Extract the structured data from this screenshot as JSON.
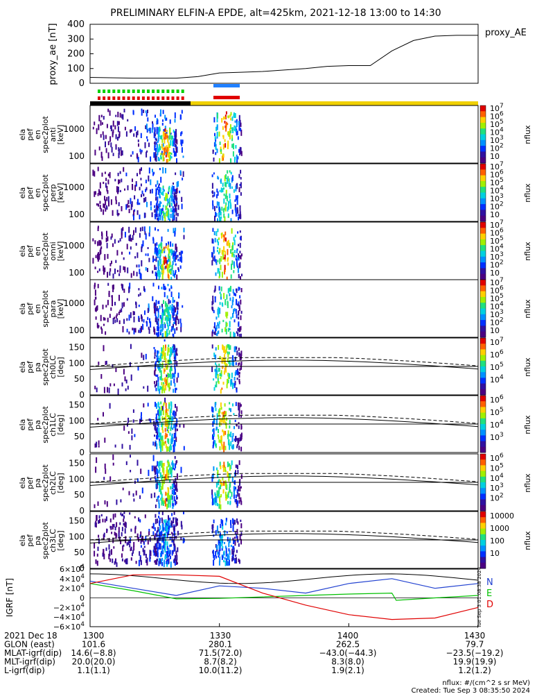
{
  "title": "PRELIMINARY ELFIN-A EPDE, alt=425km, 2021-12-18 13:00 to 14:30",
  "top_panel": {
    "ylabel": "proxy_ae [nT]",
    "legend": "proxy_AE",
    "yticks": [
      "400",
      "300",
      "200",
      "100",
      "0"
    ]
  },
  "energy_panels": [
    {
      "ylabel": [
        "ela",
        "pef",
        "en",
        "spec2plot",
        "anti",
        "[keV]"
      ]
    },
    {
      "ylabel": [
        "ela",
        "pef",
        "en",
        "spec2plot",
        "perp",
        "[keV]"
      ]
    },
    {
      "ylabel": [
        "ela",
        "pef",
        "en",
        "spec2plot",
        "omni",
        "[keV]"
      ]
    },
    {
      "ylabel": [
        "ela",
        "pef",
        "en",
        "spec2plot",
        "para",
        "[keV]"
      ]
    }
  ],
  "energy_yticks": [
    "1000",
    "100"
  ],
  "energy_colorbar": {
    "label": "nflux",
    "ticks": [
      {
        "base": "10",
        "exp": "7"
      },
      {
        "base": "10",
        "exp": "6"
      },
      {
        "base": "10",
        "exp": "5"
      },
      {
        "base": "10",
        "exp": "4"
      },
      {
        "base": "10",
        "exp": "3"
      },
      {
        "base": "10",
        "exp": "2"
      },
      {
        "base": "10",
        "exp": ""
      }
    ]
  },
  "pa_panels": [
    {
      "ylabel": [
        "ela",
        "pef",
        "pa",
        "spec2plot",
        "ch0LC",
        "[deg]"
      ],
      "cbar": [
        {
          "base": "10",
          "exp": "7"
        },
        {
          "base": "10",
          "exp": "6"
        },
        {
          "base": "10",
          "exp": "5"
        },
        {
          "base": "10",
          "exp": "4"
        }
      ]
    },
    {
      "ylabel": [
        "ela",
        "pef",
        "pa",
        "spec2plot",
        "ch1LC",
        "[deg]"
      ],
      "cbar": [
        {
          "base": "10",
          "exp": "6"
        },
        {
          "base": "10",
          "exp": "5"
        },
        {
          "base": "10",
          "exp": "4"
        },
        {
          "base": "10",
          "exp": "3"
        }
      ]
    },
    {
      "ylabel": [
        "ela",
        "pef",
        "pa",
        "spec2plot",
        "ch2LC",
        "[deg]"
      ],
      "cbar": [
        {
          "base": "10",
          "exp": "6"
        },
        {
          "base": "10",
          "exp": "5"
        },
        {
          "base": "10",
          "exp": "4"
        },
        {
          "base": "10",
          "exp": "3"
        },
        {
          "base": "10",
          "exp": "2"
        }
      ]
    },
    {
      "ylabel": [
        "ela",
        "pef",
        "pa",
        "spec2plot",
        "ch3LC",
        "[deg]"
      ],
      "cbar": [
        {
          "base": "10000",
          "exp": ""
        },
        {
          "base": "1000",
          "exp": ""
        },
        {
          "base": "100",
          "exp": ""
        },
        {
          "base": "10",
          "exp": ""
        }
      ]
    }
  ],
  "pa_yticks": [
    "150",
    "100",
    "50",
    "0"
  ],
  "pa_cbar_label": "nflux",
  "igrf_panel": {
    "ylabel": "IGRF [nT]",
    "yticks": [
      {
        "base": "6×10",
        "exp": "4"
      },
      {
        "base": "4×10",
        "exp": "4"
      },
      {
        "base": "2×10",
        "exp": "4"
      },
      {
        "base": "0",
        "exp": ""
      },
      {
        "base": "−2×10",
        "exp": "4"
      },
      {
        "base": "−4×10",
        "exp": "4"
      },
      {
        "base": "−6×10",
        "exp": "4"
      }
    ],
    "legend": [
      "N",
      "E",
      "D"
    ],
    "side_stamp": "Tue Sep  3 01:08:38 2024"
  },
  "footer": {
    "rows": [
      {
        "label": "2021 Dec 18",
        "vals": [
          "1300",
          "1330",
          "1400",
          "1430"
        ]
      },
      {
        "label": "GLON (east)",
        "vals": [
          "101.6",
          "280.1",
          "262.5",
          "79.7"
        ]
      },
      {
        "label": "MLAT-igrf(dip)",
        "vals": [
          "14.6(−8.8)",
          "71.5(72.0)",
          "−43.0(−44.3)",
          "−23.5(−19.2)"
        ]
      },
      {
        "label": "MLT-igrf(dip)",
        "vals": [
          "20.0(20.0)",
          "8.7(8.2)",
          "8.3(8.0)",
          "19.9(19.9)"
        ]
      },
      {
        "label": "L-igrf(dip)",
        "vals": [
          "1.1(1.1)",
          "10.0(11.2)",
          "1.9(2.1)",
          "1.2(1.2)"
        ]
      }
    ],
    "note1": "nflux: #/(cm^2 s sr MeV)",
    "note2": "Created: Tue Sep  3 08:35:50 2024"
  },
  "colors": {
    "green": "#00d000",
    "red": "#e00000",
    "blue": "#2080ff",
    "yellow": "#f0d000",
    "black": "#000000",
    "igrf_n": "#2040d0",
    "igrf_e": "#00c000",
    "igrf_d": "#e00000"
  },
  "chart_data": {
    "type": "heatmap",
    "title": "PRELIMINARY ELFIN-A EPDE, alt=425km, 2021-12-18 13:00 to 14:30",
    "x_ticks": [
      "1300",
      "1330",
      "1400",
      "1430"
    ],
    "xlim": [
      "13:00",
      "14:30"
    ],
    "proxy_ae": {
      "ylabel": "proxy_ae [nT]",
      "ylim": [
        0,
        400
      ],
      "x_min": [
        0,
        10,
        20,
        25,
        30,
        35,
        40,
        45,
        50,
        55,
        60,
        65,
        70,
        75,
        80,
        85,
        90
      ],
      "values": [
        40,
        35,
        35,
        45,
        70,
        75,
        80,
        90,
        100,
        115,
        120,
        120,
        220,
        290,
        320,
        325,
        325
      ]
    },
    "energy_ylim": [
      60,
      3000
    ],
    "pa_ylim": [
      0,
      180
    ],
    "igrf": {
      "ylim": [
        -60000,
        60000
      ],
      "series": [
        {
          "name": "N",
          "x_min": [
            0,
            10,
            20,
            30,
            40,
            50,
            60,
            70,
            80,
            90
          ],
          "values": [
            35000,
            20000,
            5000,
            25000,
            20000,
            10000,
            30000,
            40000,
            20000,
            30000
          ]
        },
        {
          "name": "E",
          "x_min": [
            0,
            10,
            20,
            30,
            40,
            50,
            60,
            70,
            71,
            80,
            90
          ],
          "values": [
            30000,
            15000,
            -2000,
            -1000,
            2000,
            5000,
            8000,
            10000,
            -5000,
            0,
            5000
          ]
        },
        {
          "name": "D",
          "x_min": [
            0,
            10,
            20,
            30,
            40,
            50,
            60,
            70,
            80,
            90
          ],
          "values": [
            30000,
            48000,
            48000,
            45000,
            10000,
            -15000,
            -35000,
            -45000,
            -42000,
            -20000
          ]
        }
      ]
    }
  }
}
